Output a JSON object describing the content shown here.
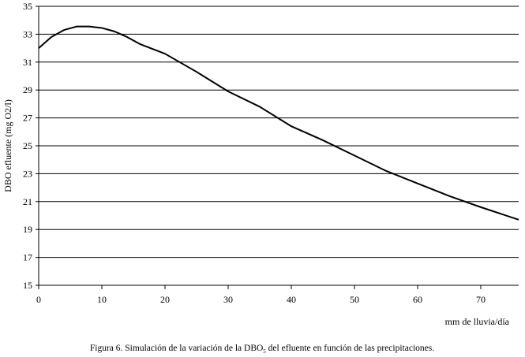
{
  "chart_data": {
    "type": "line",
    "x": [
      0,
      2,
      4,
      6,
      8,
      10,
      12,
      14,
      16,
      20,
      25,
      30,
      35,
      40,
      45,
      50,
      55,
      60,
      65,
      70,
      76
    ],
    "values": [
      32.0,
      32.8,
      33.3,
      33.55,
      33.55,
      33.45,
      33.2,
      32.8,
      32.3,
      31.6,
      30.3,
      28.9,
      27.8,
      26.4,
      25.4,
      24.3,
      23.2,
      22.3,
      21.4,
      20.6,
      19.7
    ],
    "color": "#000000",
    "xlim": [
      0,
      76
    ],
    "xticks": [
      0,
      10,
      20,
      30,
      40,
      50,
      60,
      70
    ],
    "ylim": [
      15,
      35
    ],
    "yticks": [
      15,
      17,
      19,
      21,
      23,
      25,
      27,
      29,
      31,
      33,
      35
    ],
    "grid": true,
    "ylabel": "DBO efluente (mg O2/l)",
    "xlabel": "mm de lluvia/día",
    "caption": [
      "Figura 6. Simulación de la variación de la DBO",
      "5",
      " del efluente en función de las precipitaciones."
    ]
  }
}
